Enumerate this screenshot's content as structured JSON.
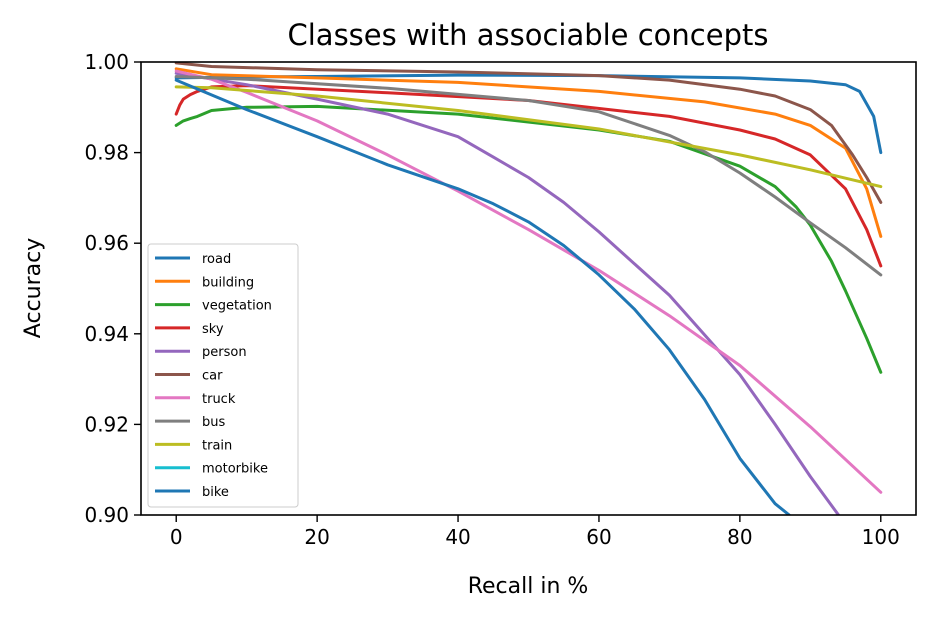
{
  "chart_data": {
    "type": "line",
    "title": "Classes with associable concepts",
    "xlabel": "Recall in %",
    "ylabel": "Accuracy",
    "xlim": [
      -5,
      105
    ],
    "ylim": [
      0.9,
      1.0
    ],
    "xticks": [
      0,
      20,
      40,
      60,
      80,
      100
    ],
    "xtick_labels": [
      "0",
      "20",
      "40",
      "60",
      "80",
      "100"
    ],
    "yticks": [
      0.9,
      0.92,
      0.94,
      0.96,
      0.98,
      1.0
    ],
    "ytick_labels": [
      "0.90",
      "0.92",
      "0.94",
      "0.96",
      "0.98",
      "1.00"
    ],
    "grid": false,
    "legend_position": "lower-left",
    "series": [
      {
        "name": "road",
        "color": "#1f77b4",
        "x": [
          0,
          10,
          20,
          40,
          60,
          80,
          90,
          95,
          97,
          99,
          100
        ],
        "y": [
          0.9965,
          0.9967,
          0.9968,
          0.9971,
          0.997,
          0.9965,
          0.9958,
          0.995,
          0.9935,
          0.988,
          0.98
        ]
      },
      {
        "name": "building",
        "color": "#ff7f0e",
        "x": [
          0,
          5,
          20,
          40,
          60,
          75,
          85,
          90,
          95,
          98,
          100
        ],
        "y": [
          0.9985,
          0.9972,
          0.9965,
          0.9955,
          0.9935,
          0.9912,
          0.9885,
          0.986,
          0.981,
          0.972,
          0.9615
        ]
      },
      {
        "name": "vegetation",
        "color": "#2ca02c",
        "x": [
          0,
          1,
          2,
          3,
          5,
          10,
          20,
          40,
          60,
          70,
          80,
          85,
          88,
          90,
          93,
          95,
          98,
          100
        ],
        "y": [
          0.986,
          0.987,
          0.9875,
          0.988,
          0.9893,
          0.99,
          0.9902,
          0.9885,
          0.985,
          0.9825,
          0.977,
          0.9725,
          0.968,
          0.964,
          0.956,
          0.9495,
          0.939,
          0.9315
        ]
      },
      {
        "name": "sky",
        "color": "#d62728",
        "x": [
          0,
          0.5,
          1,
          2,
          3,
          5,
          10,
          30,
          50,
          70,
          80,
          85,
          90,
          95,
          98,
          100
        ],
        "y": [
          0.9885,
          0.9905,
          0.9918,
          0.9928,
          0.9935,
          0.9945,
          0.9948,
          0.9932,
          0.9915,
          0.988,
          0.985,
          0.983,
          0.9795,
          0.972,
          0.963,
          0.955
        ]
      },
      {
        "name": "person",
        "color": "#9467bd",
        "x": [
          0,
          10,
          20,
          30,
          40,
          45,
          50,
          55,
          60,
          70,
          80,
          85,
          90,
          94
        ],
        "y": [
          0.9975,
          0.995,
          0.9918,
          0.9885,
          0.9835,
          0.979,
          0.9745,
          0.969,
          0.9625,
          0.9485,
          0.931,
          0.92,
          0.9085,
          0.9
        ]
      },
      {
        "name": "car",
        "color": "#8c564b",
        "x": [
          0,
          5,
          20,
          40,
          60,
          70,
          80,
          85,
          90,
          93,
          96,
          98,
          100
        ],
        "y": [
          0.9998,
          0.999,
          0.9983,
          0.9978,
          0.997,
          0.996,
          0.994,
          0.9925,
          0.9895,
          0.986,
          0.9795,
          0.9745,
          0.969
        ]
      },
      {
        "name": "truck",
        "color": "#e377c2",
        "x": [
          0,
          5,
          10,
          20,
          30,
          40,
          50,
          60,
          70,
          80,
          90,
          100
        ],
        "y": [
          0.998,
          0.9962,
          0.9933,
          0.987,
          0.9795,
          0.9715,
          0.963,
          0.954,
          0.944,
          0.933,
          0.9195,
          0.905
        ]
      },
      {
        "name": "bus",
        "color": "#7f7f7f",
        "x": [
          0,
          10,
          30,
          50,
          60,
          70,
          75,
          80,
          85,
          90,
          95,
          100
        ],
        "y": [
          0.9968,
          0.9962,
          0.9942,
          0.9915,
          0.989,
          0.9838,
          0.9802,
          0.9755,
          0.9702,
          0.9645,
          0.959,
          0.953
        ]
      },
      {
        "name": "train",
        "color": "#bcbd22",
        "x": [
          0,
          5,
          20,
          40,
          60,
          80,
          90,
          100
        ],
        "y": [
          0.9945,
          0.9943,
          0.9925,
          0.9893,
          0.9852,
          0.9795,
          0.9762,
          0.9725
        ]
      },
      {
        "name": "motorbike",
        "color": "#17becf",
        "x": [],
        "y": []
      },
      {
        "name": "bike",
        "color": "#1f77b4",
        "x": [
          0,
          10,
          20,
          30,
          40,
          45,
          50,
          55,
          60,
          65,
          70,
          75,
          80,
          85,
          87
        ],
        "y": [
          0.996,
          0.9895,
          0.9835,
          0.9773,
          0.972,
          0.9687,
          0.9647,
          0.9595,
          0.953,
          0.9455,
          0.9365,
          0.9255,
          0.9125,
          0.9025,
          0.9
        ]
      }
    ]
  }
}
